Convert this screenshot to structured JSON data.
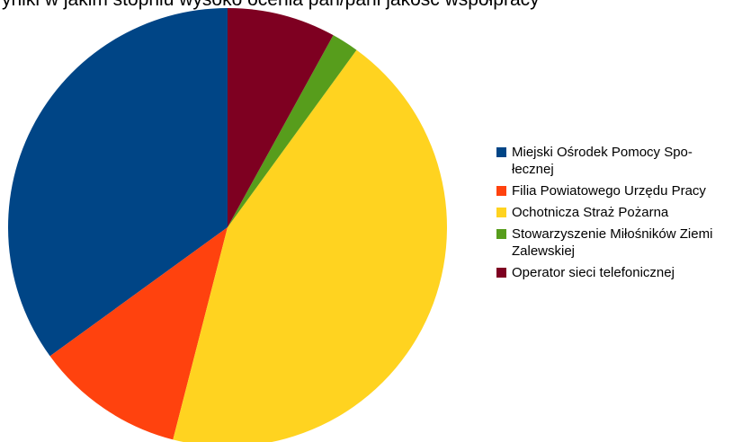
{
  "top_text": "yniki w jakim stopniu wysoko ocenia pan/pani jakość współpracy",
  "chart_data": {
    "type": "pie",
    "categories": [
      "Miejski Ośrodek Pomocy Społecznej",
      "Filia Powiatowego Urzędu Pracy",
      "Ochotnicza Straż Pożarna",
      "Stowarzyszenie Miłośników Ziemi Zalewskiej",
      "Operator sieci telefonicznej"
    ],
    "values": [
      35,
      11,
      44,
      2,
      8
    ],
    "colors": [
      "#004586",
      "#ff420e",
      "#ffd320",
      "#579d1c",
      "#7e0021"
    ],
    "legend_labels": [
      "Miejski Ośrodek Pomocy Spo-łecznej",
      "Filia Powiatowego Urzędu Pracy",
      "Ochotnicza Straż Pożarna",
      "Stowarzyszenie Miłośników Ziemi Zalewskiej",
      "Operator sieci telefonicznej"
    ],
    "legend_position": "right",
    "start_angle_deg": 0,
    "direction": "counterclockwise"
  }
}
